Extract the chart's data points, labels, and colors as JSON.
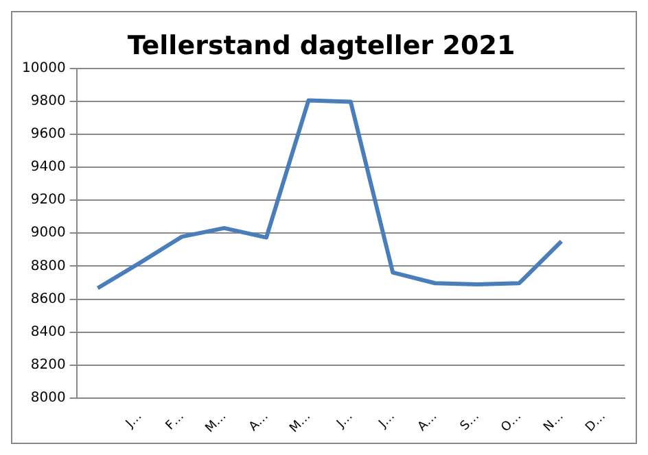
{
  "chart_data": {
    "type": "line",
    "title": "Tellerstand dagteller 2021",
    "categories": [
      null,
      "J…",
      "F…",
      "M…",
      "A…",
      "M…",
      "J…",
      "J…",
      "A…",
      "S…",
      "O…",
      "N…",
      "D…"
    ],
    "series": [
      {
        "color": "#4a7ebb",
        "values": [
          8667,
          8820,
          8979,
          9031,
          8974,
          9805,
          9797,
          8762,
          8697,
          8690,
          8697,
          8951,
          null
        ]
      }
    ],
    "ylim": [
      8000,
      10000
    ],
    "yticks": [
      8000,
      8200,
      8400,
      8600,
      8800,
      9000,
      9200,
      9400,
      9600,
      9800,
      10000
    ],
    "grid": "y",
    "legend": false,
    "marker": "none"
  }
}
